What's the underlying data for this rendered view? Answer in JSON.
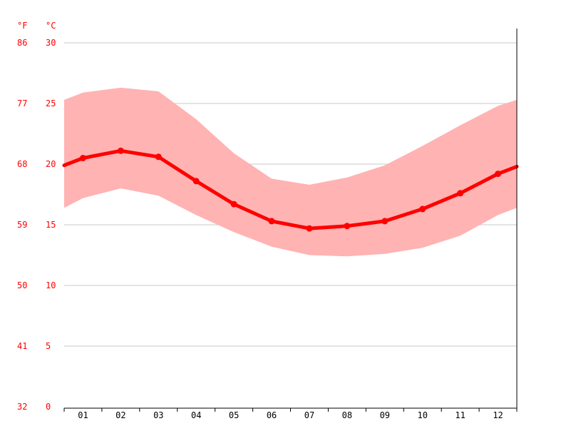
{
  "chart_data": {
    "type": "line",
    "title": "",
    "xlabel": "",
    "ylabel": "",
    "units": {
      "left": "°F",
      "right": "°C"
    },
    "categories": [
      "01",
      "02",
      "03",
      "04",
      "05",
      "06",
      "07",
      "08",
      "09",
      "10",
      "11",
      "12"
    ],
    "series": [
      {
        "role": "average",
        "values": [
          20.5,
          21.1,
          20.6,
          18.6,
          16.7,
          15.3,
          14.7,
          14.9,
          15.3,
          16.3,
          17.6,
          19.2
        ]
      },
      {
        "role": "band-max",
        "values": [
          25.9,
          26.3,
          26.0,
          23.7,
          20.9,
          18.8,
          18.3,
          18.9,
          19.9,
          21.5,
          23.2,
          24.8
        ]
      },
      {
        "role": "band-min",
        "values": [
          17.2,
          18.0,
          17.4,
          15.8,
          14.4,
          13.2,
          12.5,
          12.4,
          12.6,
          13.1,
          14.1,
          15.8
        ]
      }
    ],
    "edges": {
      "start": {
        "average": 19.9,
        "max": 25.3,
        "min": 16.4
      },
      "end": {
        "average": 19.8,
        "max": 25.3,
        "min": 16.4
      }
    },
    "y_ticks_c": [
      "0",
      "5",
      "10",
      "15",
      "20",
      "25",
      "30"
    ],
    "y_ticks_f": [
      "32",
      "41",
      "50",
      "59",
      "68",
      "77",
      "86"
    ],
    "ylim": [
      0,
      30
    ],
    "grid": true,
    "colors": {
      "line": "#ff0000",
      "band": "#ffb3b3",
      "tick_labels": "#ff0000",
      "grid": "#c8c8c8",
      "axis": "#000000"
    }
  }
}
